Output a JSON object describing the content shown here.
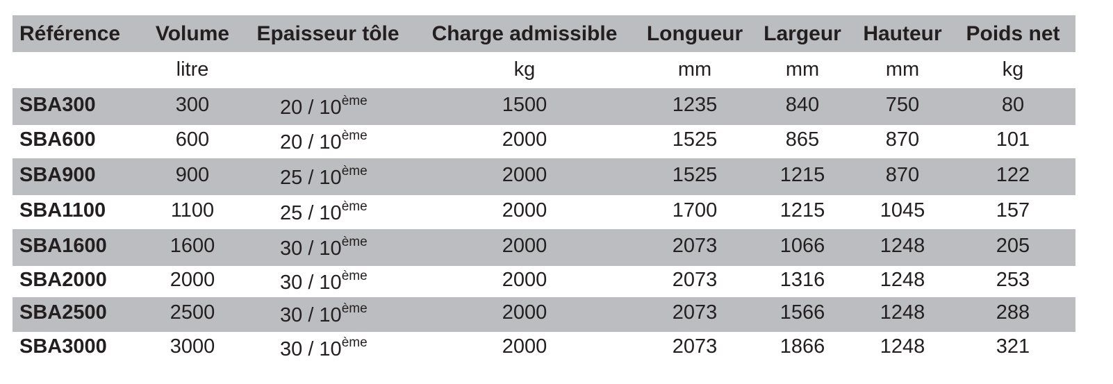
{
  "table": {
    "headers": [
      "Référence",
      "Volume",
      "Epaisseur tôle",
      "Charge admissible",
      "Longueur",
      "Largeur",
      "Hauteur",
      "Poids net"
    ],
    "units": [
      null,
      "litre",
      null,
      "kg",
      "mm",
      "mm",
      "mm",
      "kg"
    ],
    "rows": [
      [
        "SBA300",
        "300",
        {
          "text": "20 / 10",
          "sup": "ème"
        },
        "1500",
        "1235",
        "840",
        "750",
        "80"
      ],
      [
        "SBA600",
        "600",
        {
          "text": "20 / 10",
          "sup": "ème"
        },
        "2000",
        "1525",
        "865",
        "870",
        "101"
      ],
      [
        "SBA900",
        "900",
        {
          "text": "25 / 10",
          "sup": "ème"
        },
        "2000",
        "1525",
        "1215",
        "870",
        "122"
      ],
      [
        "SBA1100",
        "1100",
        {
          "text": "25 / 10",
          "sup": "ème"
        },
        "2000",
        "1700",
        "1215",
        "1045",
        "157"
      ],
      [
        "SBA1600",
        "1600",
        {
          "text": "30 / 10",
          "sup": "ème"
        },
        "2000",
        "2073",
        "1066",
        "1248",
        "205"
      ],
      [
        "SBA2000",
        "2000",
        {
          "text": "30 / 10",
          "sup": "ème"
        },
        "2000",
        "2073",
        "1316",
        "1248",
        "253"
      ],
      [
        "SBA2500",
        "2500",
        {
          "text": "30 / 10",
          "sup": "ème"
        },
        "2000",
        "2073",
        "1566",
        "1248",
        "288"
      ],
      [
        "SBA3000",
        "3000",
        {
          "text": "30 / 10",
          "sup": "ème"
        },
        "2000",
        "2073",
        "1866",
        "1248",
        "321"
      ]
    ]
  }
}
